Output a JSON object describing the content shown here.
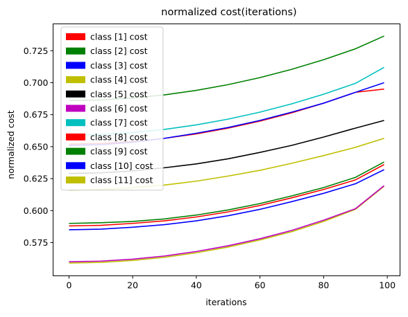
{
  "chart_data": {
    "type": "line",
    "title": "normalized cost(iterations)",
    "xlabel": "iterations",
    "ylabel": "normalized cost",
    "xlim": [
      -5,
      104
    ],
    "ylim": [
      0.549,
      0.746
    ],
    "xticks": [
      0,
      20,
      40,
      60,
      80,
      100
    ],
    "xtick_labels": [
      "0",
      "20",
      "40",
      "60",
      "80",
      "100"
    ],
    "yticks": [
      0.575,
      0.6,
      0.625,
      0.65,
      0.675,
      0.7,
      0.725
    ],
    "ytick_labels": [
      "0.575",
      "0.600",
      "0.625",
      "0.650",
      "0.675",
      "0.700",
      "0.725"
    ],
    "grid": false,
    "legend_position": "upper-left",
    "x": [
      0,
      10,
      20,
      30,
      40,
      50,
      60,
      70,
      80,
      90,
      99
    ],
    "series": [
      {
        "name": "class [1] cost",
        "color": "#ff0000",
        "values": [
          0.652,
          0.6525,
          0.654,
          0.6565,
          0.66,
          0.6645,
          0.67,
          0.6765,
          0.684,
          0.6925,
          0.695
        ]
      },
      {
        "name": "class [2] cost",
        "color": "#008000",
        "values": [
          0.686,
          0.6865,
          0.688,
          0.6905,
          0.694,
          0.6985,
          0.704,
          0.7105,
          0.718,
          0.7265,
          0.7365
        ]
      },
      {
        "name": "class [3] cost",
        "color": "#0000ff",
        "values": [
          0.651,
          0.6515,
          0.6535,
          0.6565,
          0.6605,
          0.665,
          0.6705,
          0.677,
          0.684,
          0.6925,
          0.7
        ]
      },
      {
        "name": "class [4] cost",
        "color": "#bfbf00",
        "values": [
          0.559,
          0.5595,
          0.561,
          0.5635,
          0.567,
          0.5715,
          0.577,
          0.5835,
          0.5915,
          0.601,
          0.619
        ]
      },
      {
        "name": "class [5] cost",
        "color": "#000000",
        "values": [
          0.629,
          0.6295,
          0.631,
          0.6335,
          0.6365,
          0.6405,
          0.6455,
          0.651,
          0.6575,
          0.6645,
          0.6705
        ]
      },
      {
        "name": "class [6] cost",
        "color": "#bf00bf",
        "values": [
          0.56,
          0.5605,
          0.562,
          0.5645,
          0.568,
          0.5725,
          0.578,
          0.5845,
          0.5925,
          0.6015,
          0.6195
        ]
      },
      {
        "name": "class [7] cost",
        "color": "#00bfbf",
        "values": [
          0.659,
          0.6595,
          0.661,
          0.6635,
          0.667,
          0.6715,
          0.677,
          0.6835,
          0.691,
          0.6995,
          0.712
        ]
      },
      {
        "name": "class [8] cost",
        "color": "#ff0000",
        "values": [
          0.588,
          0.5885,
          0.59,
          0.592,
          0.595,
          0.599,
          0.604,
          0.61,
          0.6165,
          0.624,
          0.636
        ]
      },
      {
        "name": "class [9] cost",
        "color": "#008000",
        "values": [
          0.59,
          0.5905,
          0.5915,
          0.5935,
          0.5965,
          0.6005,
          0.6055,
          0.6115,
          0.618,
          0.626,
          0.638
        ]
      },
      {
        "name": "class [10] cost",
        "color": "#0000ff",
        "values": [
          0.585,
          0.5855,
          0.587,
          0.589,
          0.592,
          0.596,
          0.601,
          0.607,
          0.6135,
          0.621,
          0.632
        ]
      },
      {
        "name": "class [11] cost",
        "color": "#bfbf00",
        "values": [
          0.616,
          0.6165,
          0.618,
          0.62,
          0.623,
          0.627,
          0.6315,
          0.637,
          0.643,
          0.6495,
          0.6565
        ]
      }
    ]
  }
}
